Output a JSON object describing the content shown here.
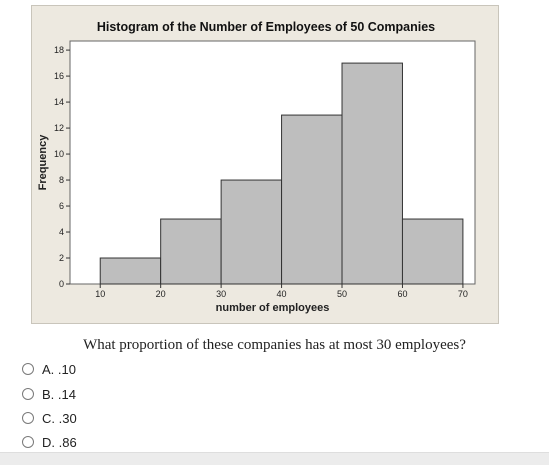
{
  "chart_data": {
    "type": "bar",
    "title": "Histogram of the Number of Employees of 50 Companies",
    "xlabel": "number of employees",
    "ylabel": "Frequency",
    "bins": [
      {
        "start": 10,
        "end": 20,
        "value": 2
      },
      {
        "start": 20,
        "end": 30,
        "value": 5
      },
      {
        "start": 30,
        "end": 40,
        "value": 8
      },
      {
        "start": 40,
        "end": 50,
        "value": 13
      },
      {
        "start": 50,
        "end": 60,
        "value": 17
      },
      {
        "start": 60,
        "end": 70,
        "value": 5
      }
    ],
    "xticks": [
      10,
      20,
      30,
      40,
      50,
      60,
      70
    ],
    "yticks": [
      0,
      2,
      4,
      6,
      8,
      10,
      12,
      14,
      16,
      18
    ],
    "xlim": [
      5,
      72
    ],
    "ylim": [
      0,
      18.7
    ],
    "bar_color": "#bebebe",
    "grid": false
  },
  "question": {
    "text": "What proportion of these companies has at most 30 employees?"
  },
  "options": [
    {
      "label": "A. .10"
    },
    {
      "label": "B. .14"
    },
    {
      "label": "C. .30"
    },
    {
      "label": "D. .86"
    }
  ]
}
